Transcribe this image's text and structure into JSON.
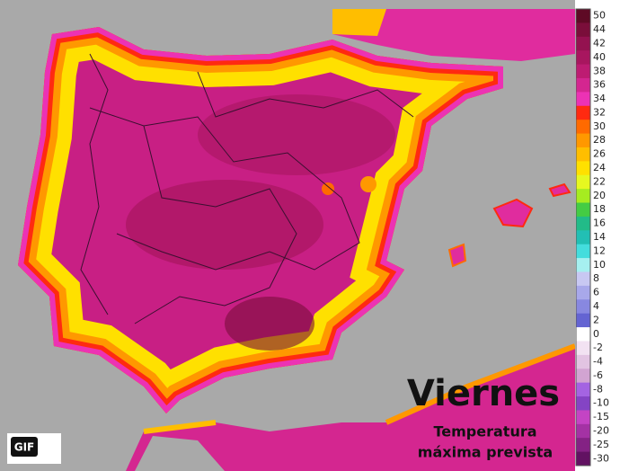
{
  "title": "Viernes",
  "subtitle_line1": "Temperatura",
  "subtitle_line2": "máxima prevista",
  "logo": "GIF",
  "legend": [
    {
      "label": "50",
      "color": "#5e0a25"
    },
    {
      "label": "44",
      "color": "#7a0e3a"
    },
    {
      "label": "42",
      "color": "#941250"
    },
    {
      "label": "40",
      "color": "#a8165f"
    },
    {
      "label": "38",
      "color": "#bd1c72"
    },
    {
      "label": "36",
      "color": "#d42690"
    },
    {
      "label": "34",
      "color": "#ec32b4"
    },
    {
      "label": "32",
      "color": "#ff2a10"
    },
    {
      "label": "30",
      "color": "#ff6a00"
    },
    {
      "label": "28",
      "color": "#ff9800"
    },
    {
      "label": "26",
      "color": "#ffbe00"
    },
    {
      "label": "24",
      "color": "#ffe000"
    },
    {
      "label": "22",
      "color": "#e6f820"
    },
    {
      "label": "20",
      "color": "#a6ec20"
    },
    {
      "label": "18",
      "color": "#44cc44"
    },
    {
      "label": "16",
      "color": "#22bb88"
    },
    {
      "label": "14",
      "color": "#22bfb4"
    },
    {
      "label": "12",
      "color": "#44dddd"
    },
    {
      "label": "10",
      "color": "#a6f0f0"
    },
    {
      "label": "8",
      "color": "#c8c8f2"
    },
    {
      "label": "6",
      "color": "#a8a8ea"
    },
    {
      "label": "4",
      "color": "#8888e0"
    },
    {
      "label": "2",
      "color": "#6464d2"
    },
    {
      "label": "0",
      "color": "#ffffff"
    },
    {
      "label": "-2",
      "color": "#f2e2f2"
    },
    {
      "label": "-4",
      "color": "#e2c4e2"
    },
    {
      "label": "-6",
      "color": "#d2a4d2"
    },
    {
      "label": "-8",
      "color": "#a464e2"
    },
    {
      "label": "-10",
      "color": "#8444c4"
    },
    {
      "label": "-15",
      "color": "#c444c4"
    },
    {
      "label": "-20",
      "color": "#a432a4"
    },
    {
      "label": "-25",
      "color": "#842284"
    },
    {
      "label": "-30",
      "color": "#621262"
    }
  ]
}
